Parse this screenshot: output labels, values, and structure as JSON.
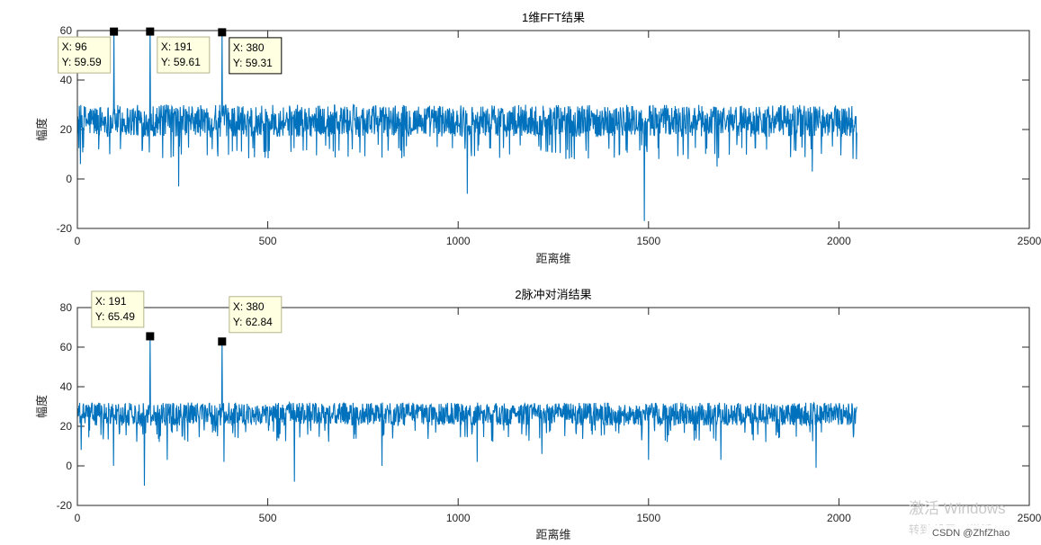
{
  "colors": {
    "series": "#0072BD",
    "axis": "#262626",
    "tip_border": "#b4b48c",
    "tip_fill": "#ffffe1",
    "marker": "#000000"
  },
  "chart_data": [
    {
      "type": "line",
      "title": "1维FFT结果",
      "xlabel": "距离维",
      "ylabel": "幅度",
      "xlim": [
        0,
        2500
      ],
      "ylim": [
        -20,
        60
      ],
      "xticks": [
        "0",
        "500",
        "1000",
        "1500",
        "2000",
        "2500"
      ],
      "yticks": [
        "-20",
        "0",
        "20",
        "40",
        "60"
      ],
      "grid": false,
      "series": [
        {
          "n_points": 2048,
          "baseline_range": [
            10,
            30
          ],
          "dips": [
            {
              "x": 8,
              "y": 6
            },
            {
              "x": 95,
              "y": 1
            },
            {
              "x": 266,
              "y": -3
            },
            {
              "x": 380,
              "y": 1
            },
            {
              "x": 1024,
              "y": -6
            },
            {
              "x": 1489,
              "y": -17
            },
            {
              "x": 1680,
              "y": 5
            },
            {
              "x": 1930,
              "y": 3
            },
            {
              "x": 2046,
              "y": 8
            }
          ],
          "peaks": [
            {
              "x": 96,
              "y": 59.59
            },
            {
              "x": 191,
              "y": 59.61
            },
            {
              "x": 380,
              "y": 59.31
            }
          ]
        }
      ],
      "datatips": [
        {
          "x": 96,
          "y": 59.59,
          "x_text": "X: 96",
          "y_text": "Y: 59.59",
          "active": false
        },
        {
          "x": 191,
          "y": 59.61,
          "x_text": "X: 191",
          "y_text": "Y: 59.61",
          "active": false
        },
        {
          "x": 380,
          "y": 59.31,
          "x_text": "X: 380",
          "y_text": "Y: 59.31",
          "active": true
        }
      ]
    },
    {
      "type": "line",
      "title": "2脉冲对消结果",
      "xlabel": "距离维",
      "ylabel": "幅度",
      "xlim": [
        0,
        2500
      ],
      "ylim": [
        -20,
        80
      ],
      "xticks": [
        "0",
        "500",
        "1000",
        "1500",
        "2000",
        "2500"
      ],
      "yticks": [
        "-20",
        "0",
        "20",
        "40",
        "60",
        "80"
      ],
      "grid": false,
      "series": [
        {
          "n_points": 2048,
          "baseline_range": [
            14,
            32
          ],
          "dips": [
            {
              "x": 10,
              "y": 8
            },
            {
              "x": 95,
              "y": 0
            },
            {
              "x": 176,
              "y": -10
            },
            {
              "x": 236,
              "y": 3
            },
            {
              "x": 385,
              "y": 2
            },
            {
              "x": 570,
              "y": -8
            },
            {
              "x": 800,
              "y": 0
            },
            {
              "x": 1050,
              "y": 2
            },
            {
              "x": 1220,
              "y": 6
            },
            {
              "x": 1500,
              "y": 3
            },
            {
              "x": 1690,
              "y": 3
            },
            {
              "x": 1940,
              "y": -1
            }
          ],
          "peaks": [
            {
              "x": 191,
              "y": 65.49
            },
            {
              "x": 380,
              "y": 62.84
            }
          ]
        }
      ],
      "datatips": [
        {
          "x": 191,
          "y": 65.49,
          "x_text": "X: 191",
          "y_text": "Y: 65.49",
          "active": false
        },
        {
          "x": 380,
          "y": 62.84,
          "x_text": "X: 380",
          "y_text": "Y: 62.84",
          "active": false
        }
      ]
    }
  ],
  "watermark": {
    "line1": "激活 Windows",
    "line2": "转到\"设置\"以激活 Wir",
    "csdn": "CSDN @ZhfZhao"
  }
}
